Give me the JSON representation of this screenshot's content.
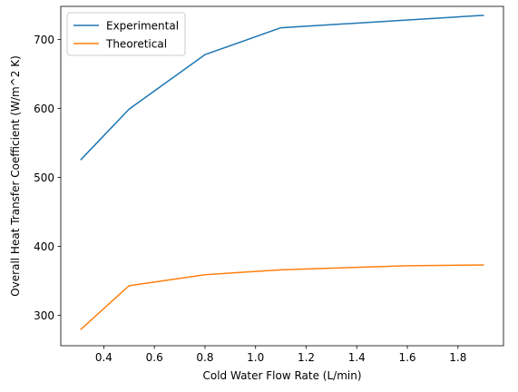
{
  "chart_data": {
    "type": "line",
    "title": "",
    "xlabel": "Cold Water Flow Rate (L/min)",
    "ylabel": "Overall Heat Transfer Coefficient (W/m^2 K)",
    "xlim": [
      0.23,
      1.98
    ],
    "ylim": [
      256,
      748
    ],
    "xticks": [
      0.4,
      0.6,
      0.8,
      1.0,
      1.2,
      1.4,
      1.6,
      1.8
    ],
    "xtick_labels": [
      "0.4",
      "0.6",
      "0.8",
      "1.0",
      "1.2",
      "1.4",
      "1.6",
      "1.8"
    ],
    "yticks": [
      300,
      400,
      500,
      600,
      700
    ],
    "ytick_labels": [
      "300",
      "400",
      "500",
      "600",
      "700"
    ],
    "grid": false,
    "legend_position": "top-left",
    "series": [
      {
        "name": "Experimental",
        "color": "#1f77b4",
        "x": [
          0.31,
          0.5,
          0.8,
          1.1,
          1.9
        ],
        "y": [
          526,
          599,
          678,
          717,
          735
        ]
      },
      {
        "name": "Theoretical",
        "color": "#ff7f0e",
        "x": [
          0.31,
          0.5,
          0.8,
          1.1,
          1.6,
          1.9
        ],
        "y": [
          280,
          343,
          359,
          366,
          372,
          373
        ]
      }
    ]
  }
}
